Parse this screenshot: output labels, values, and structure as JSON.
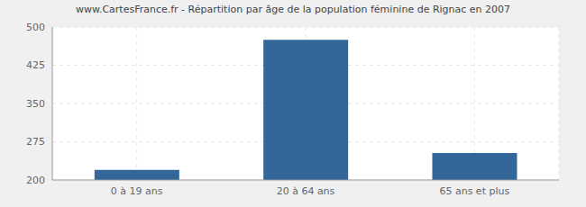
{
  "chart_data": {
    "type": "bar",
    "title": "www.CartesFrance.fr - Répartition par âge de la population féminine de Rignac en 2007",
    "categories": [
      "0 à 19 ans",
      "20 à 64 ans",
      "65 ans et plus"
    ],
    "values": [
      220,
      475,
      253
    ],
    "color": "#336699",
    "ylim": [
      200,
      500
    ],
    "yticks": [
      200,
      275,
      350,
      425,
      500
    ],
    "grid": true
  }
}
